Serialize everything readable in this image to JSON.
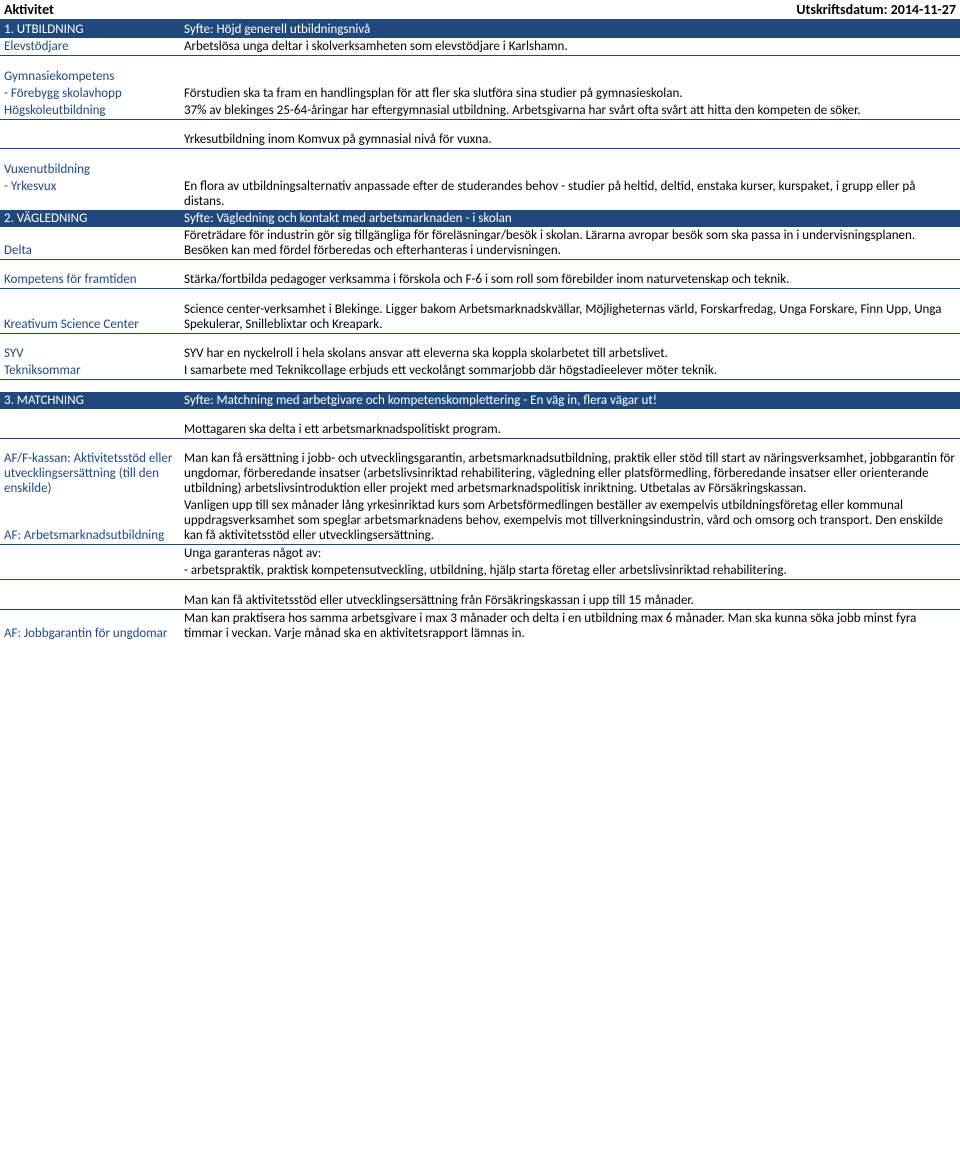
{
  "header": {
    "left": "Aktivitet",
    "right": "Utskriftsdatum: 2014-11-27"
  },
  "s1": {
    "row0": {
      "label": "1. UTBILDNING",
      "desc": "Syfte: Höjd generell utbildningsnivå"
    },
    "row1": {
      "label": "Elevstödjare",
      "desc": "Arbetslösa unga deltar i skolverksamheten som elevstödjare i Karlshamn."
    },
    "row2a": {
      "label": "Gymnasiekompetens"
    },
    "row2b": {
      "label": " - Förebygg skolavhopp",
      "desc": "Förstudien ska ta fram en handlingsplan för att fler ska slutföra sina studier på gymnasieskolan."
    },
    "row3": {
      "label": "Högskoleutbildning",
      "desc": "37% av blekinges 25-64-åringar har eftergymnasial utbildning. Arbetsgivarna har svårt ofta svårt att hitta den kompeten de söker."
    },
    "row4": {
      "desc": "Yrkesutbildning inom Komvux på gymnasial nivå för vuxna."
    },
    "row5a": {
      "label": "Vuxenutbildning"
    },
    "row5b": {
      "label": " - Yrkesvux",
      "desc": "En flora av utbildningsalternativ anpassade efter de studerandes behov - studier på heltid, deltid, enstaka kurser, kurspaket, i grupp eller på distans."
    }
  },
  "s2": {
    "row0": {
      "label": "2. VÄGLEDNING",
      "desc": "Syfte: Vägledning och kontakt med arbetsmarknaden - i skolan"
    },
    "row1": {
      "label": "Delta",
      "desc": "Företrädare för industrin gör sig tillgängliga för föreläsningar/besök i skolan. Lärarna avropar besök som ska passa in i undervisningsplanen. Besöken kan med fördel förberedas och efterhanteras i undervisningen."
    },
    "row2": {
      "label": "Kompetens för framtiden",
      "desc": "Stärka/fortbilda pedagoger verksamma i förskola och F-6 i som roll som förebilder inom naturvetenskap och teknik."
    },
    "row3": {
      "label": "Kreativum Science Center",
      "desc": "Science center-verksamhet i Blekinge. Ligger bakom Arbetsmarknadskvällar, Möjligheternas värld, Forskarfredag, Unga Forskare, Finn Upp, Unga Spekulerar, Snilleblixtar och Kreapark."
    },
    "row4": {
      "label": "SYV",
      "desc": "SYV har en nyckelroll i hela skolans ansvar att eleverna ska koppla skolarbetet till arbetslivet."
    },
    "row5": {
      "label": "Tekniksommar",
      "desc": "I samarbete med Teknikcollage erbjuds ett veckolångt sommarjobb där högstadieelever möter teknik."
    }
  },
  "s3": {
    "row0": {
      "label": "3. MATCHNING",
      "desc": "Syfte: Matchning med arbetgivare och kompetenskomplettering - En väg in, flera vägar ut!"
    },
    "row1": {
      "desc": "Mottagaren ska delta i ett arbetsmarknadspolitiskt program."
    },
    "row2a": {
      "label": "AF/F-kassan: Aktivitetsstöd eller utvecklingsersättning (till den enskilde)",
      "desc": "Man kan få ersättning i jobb- och utvecklingsgarantin, arbetsmarknadsutbildning, praktik eller stöd till start av näringsverksamhet, jobbgarantin för ungdomar, förberedande insatser (arbetslivsinriktad rehabilitering, vägledning eller platsförmedling, förberedande insatser eller orienterande utbildning) arbetslivsintroduktion eller projekt med arbetsmarknadspolitisk inriktning. Utbetalas av Försäkringskassan."
    },
    "row3": {
      "label": "AF: Arbetsmarknadsutbildning",
      "desc": "Vanligen upp till sex månader lång yrkesinriktad kurs som Arbetsförmedlingen beställer av exempelvis utbildningsföretag eller kommunal uppdragsverksamhet som speglar arbetsmarknadens behov, exempelvis mot tillverkningsindustrin, vård och omsorg och transport. Den enskilde kan få aktivitetsstöd eller utvecklingsersättning."
    },
    "row4a": {
      "desc": "Unga garanteras något av:"
    },
    "row4b": {
      "desc": " - arbetspraktik, praktisk kompetensutveckling, utbildning, hjälp starta företag eller arbetslivsinriktad rehabilitering."
    },
    "row4c": {
      "desc": "Man kan få aktivitetsstöd eller utvecklingsersättning från Försäkringskassan i upp till 15 månader."
    },
    "row4d": {
      "label": "AF: Jobbgarantin för ungdomar",
      "desc": "Man kan praktisera hos samma arbetsgivare i max 3 månader och delta i en utbildning max 6 månader. Man ska kunna söka jobb minst fyra timmar i veckan. Varje månad ska en aktivitetsrapport lämnas in."
    }
  }
}
